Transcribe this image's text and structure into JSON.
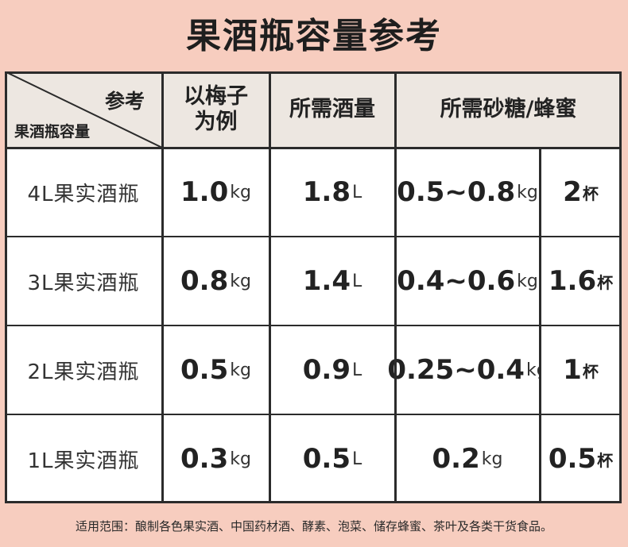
{
  "title": "果酒瓶容量参考",
  "header": {
    "corner_top": "参考",
    "corner_bottom": "果酒瓶容量",
    "col_plum": "以梅子为例",
    "col_plum_line1": "以梅子",
    "col_plum_line2": "为例",
    "col_liquor": "所需酒量",
    "col_sugar": "所需砂糖/蜂蜜"
  },
  "rows": [
    {
      "label": "4L果实酒瓶",
      "plum_value": "1.0",
      "plum_unit": "kg",
      "liquor_value": "1.8",
      "liquor_unit": "L",
      "sugar_value": "0.5~0.8",
      "sugar_unit": "kg",
      "cups_value": "2",
      "cups_unit": "杯"
    },
    {
      "label": "3L果实酒瓶",
      "plum_value": "0.8",
      "plum_unit": "kg",
      "liquor_value": "1.4",
      "liquor_unit": "L",
      "sugar_value": "0.4~0.6",
      "sugar_unit": "kg",
      "cups_value": "1.6",
      "cups_unit": "杯"
    },
    {
      "label": "2L果实酒瓶",
      "plum_value": "0.5",
      "plum_unit": "kg",
      "liquor_value": "0.9",
      "liquor_unit": "L",
      "sugar_value": "0.25~0.4",
      "sugar_unit": "kg",
      "cups_value": "1",
      "cups_unit": "杯"
    },
    {
      "label": "1L果实酒瓶",
      "plum_value": "0.3",
      "plum_unit": "kg",
      "liquor_value": "0.5",
      "liquor_unit": "L",
      "sugar_value": "0.2",
      "sugar_unit": "kg",
      "cups_value": "0.5",
      "cups_unit": "杯"
    }
  ],
  "footer": "适用范围：酿制各色果实酒、中国药材酒、酵素、泡菜、储存蜂蜜、茶叶及各类干货食品。",
  "colors": {
    "background": "#f7cdbf",
    "header_bg": "#ede7e1",
    "body_bg": "#ffffff",
    "lines": "#2b2b2b"
  }
}
